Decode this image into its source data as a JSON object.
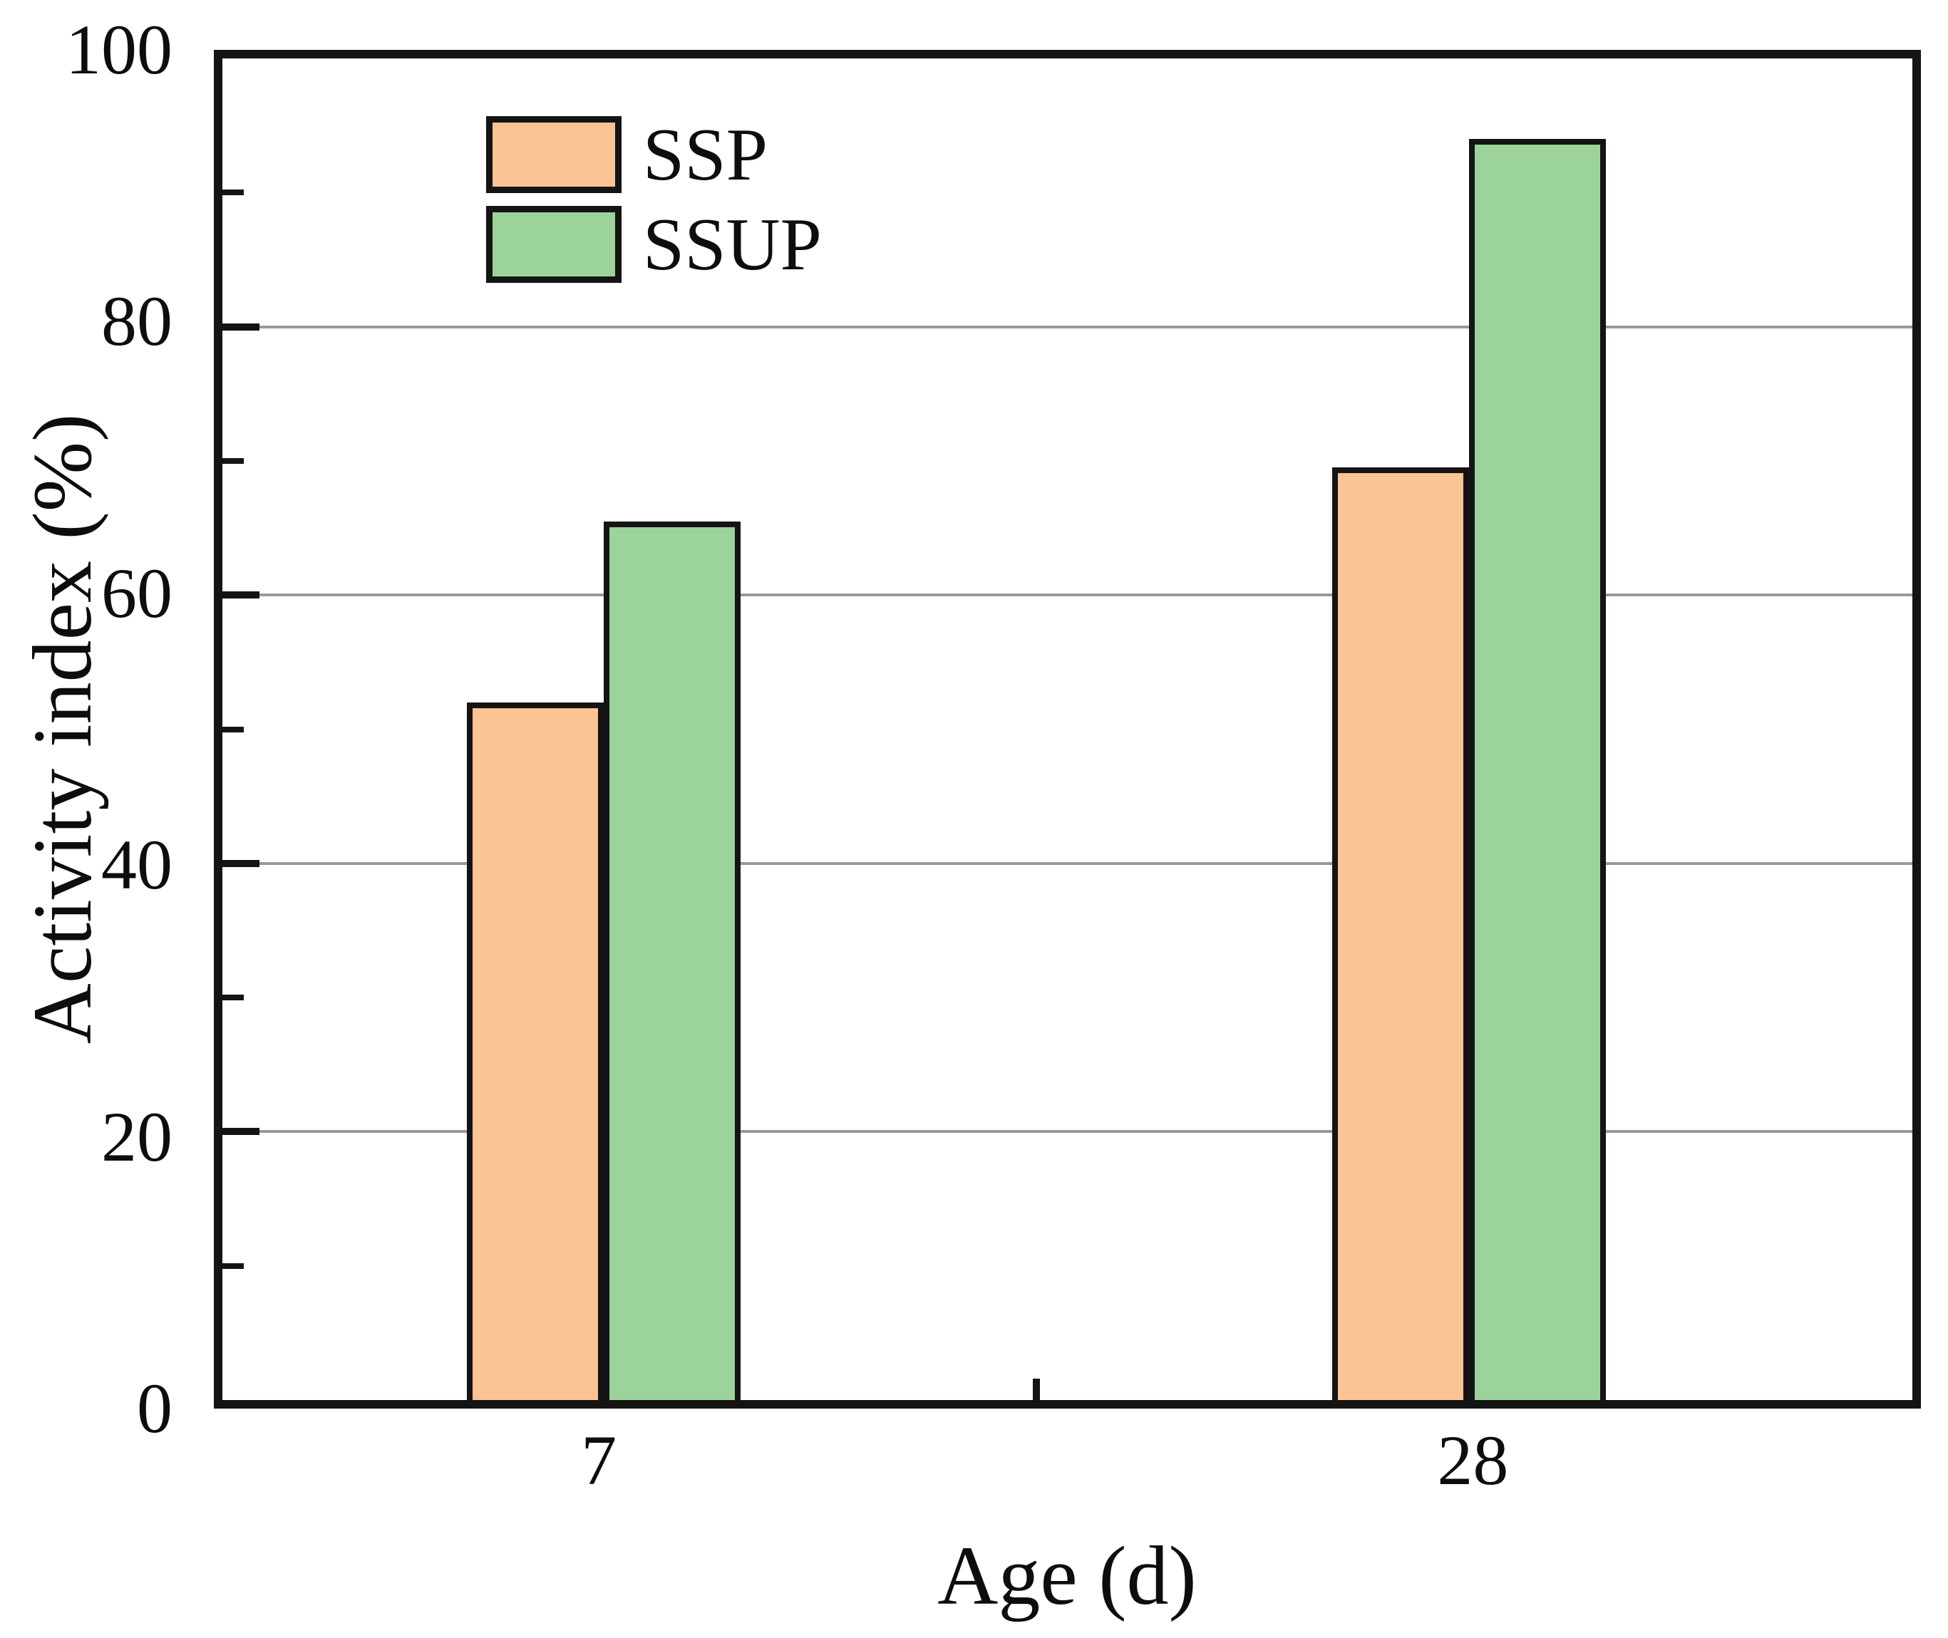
{
  "figure": {
    "background": "#ffffff",
    "text_color": "#0d0d0d"
  },
  "chart_data": {
    "type": "bar",
    "title": "",
    "xlabel": "Age (d)",
    "ylabel": "Activity index (%)",
    "categories": [
      "7",
      "28"
    ],
    "series": [
      {
        "name": "SSP",
        "color": "#fac493",
        "values": [
          52,
          69.5
        ]
      },
      {
        "name": "SSUP",
        "color": "#9cd39a",
        "values": [
          65.5,
          94
        ]
      }
    ],
    "ylim": [
      0,
      100
    ],
    "yticks_major": [
      0,
      20,
      40,
      60,
      80,
      100
    ],
    "yticks_minor": [
      10,
      30,
      50,
      70,
      90
    ],
    "gridlines_at": [
      20,
      40,
      60,
      80
    ],
    "grid_on": true,
    "grid_color": "#999999",
    "bar_edge_color": "#141414",
    "axis_color": "#141414",
    "legend_position": "top-left",
    "legend_entries": [
      "SSP",
      "SSUP"
    ]
  }
}
